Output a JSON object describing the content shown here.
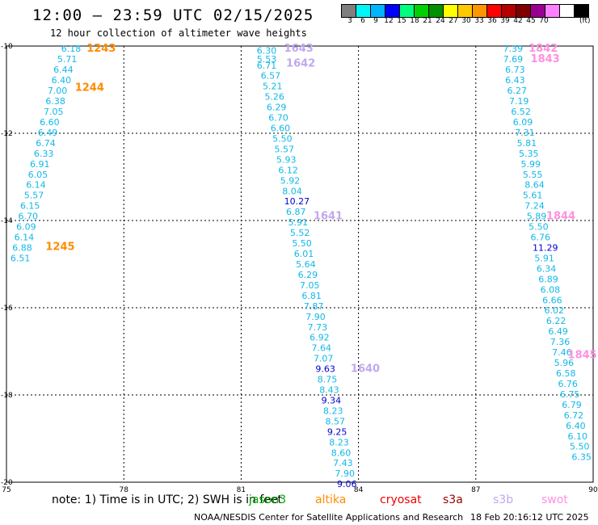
{
  "header": {
    "title": "12:00 — 23:59 UTC 02/15/2025",
    "subtitle": "12 hour collection of altimeter wave heights"
  },
  "legend": {
    "colors": [
      "#7f7f7f",
      "#00f5f5",
      "#00b4ff",
      "#0000ff",
      "#00ff7f",
      "#00d000",
      "#009000",
      "#ffff00",
      "#ffc800",
      "#ff9600",
      "#ff0000",
      "#b40000",
      "#800000",
      "#9a0090",
      "#ff80ff",
      "#ffffff",
      "#000000"
    ],
    "labels": [
      "3",
      "6",
      "9",
      "12",
      "15",
      "18",
      "21",
      "24",
      "27",
      "30",
      "33",
      "36",
      "39",
      "42",
      "45",
      "70"
    ],
    "unit": "(ft)"
  },
  "footer": {
    "note": "note: 1) Time is in UTC; 2) SWH is in feet",
    "satellites": [
      {
        "name": "jason3",
        "color": "#00aa00"
      },
      {
        "name": "altika",
        "color": "#ff8c00"
      },
      {
        "name": "cryosat",
        "color": "#ee0000"
      },
      {
        "name": "s3a",
        "color": "#990000"
      },
      {
        "name": "s3b",
        "color": "#c0a8f0"
      },
      {
        "name": "swot",
        "color": "#ff90e0"
      }
    ],
    "source": "NOAA/NESDIS Center for Satellite Applications and Research",
    "timestamp": "18 Feb 20:16:12 UTC 2025"
  },
  "chart_data": {
    "type": "scatter",
    "map": {
      "xlim": [
        75,
        90
      ],
      "ylim": [
        -20,
        -10
      ],
      "xticks": [
        75,
        78,
        81,
        84,
        87,
        90
      ],
      "yticks": [
        -10,
        -12,
        -14,
        -16,
        -18,
        -20
      ],
      "grid": true
    },
    "tracks": [
      {
        "pass": "1243",
        "sat": "altika",
        "color": "#ff8c00",
        "pos": [
          77.05,
          -10.06
        ]
      },
      {
        "pass": "1244",
        "sat": "altika",
        "color": "#ff8c00",
        "pos": [
          76.75,
          -10.95
        ]
      },
      {
        "pass": "1245",
        "sat": "altika",
        "color": "#ff8c00",
        "pos": [
          76.0,
          -14.6
        ]
      },
      {
        "pass": "1643",
        "sat": "s3b",
        "color": "#c0a8f0",
        "pos": [
          82.1,
          -10.06
        ]
      },
      {
        "pass": "1642",
        "sat": "s3b",
        "color": "#c0a8f0",
        "pos": [
          82.15,
          -10.4
        ]
      },
      {
        "pass": "1641",
        "sat": "s3b",
        "color": "#c0a8f0",
        "pos": [
          82.85,
          -13.9
        ]
      },
      {
        "pass": "1640",
        "sat": "s3b",
        "color": "#c0a8f0",
        "pos": [
          83.8,
          -17.4
        ]
      },
      {
        "pass": "1842",
        "sat": "swot",
        "color": "#ff90e0",
        "pos": [
          88.35,
          -10.06
        ]
      },
      {
        "pass": "1843",
        "sat": "swot",
        "color": "#ff90e0",
        "pos": [
          88.4,
          -10.3
        ]
      },
      {
        "pass": "1844",
        "sat": "swot",
        "color": "#ff90e0",
        "pos": [
          88.8,
          -13.9
        ]
      },
      {
        "pass": "1845",
        "sat": "swot",
        "color": "#ff90e0",
        "pos": [
          89.35,
          -17.08
        ]
      }
    ],
    "points": [
      {
        "x": 76.4,
        "y": -10.06,
        "v": "6.18"
      },
      {
        "x": 76.3,
        "y": -10.3,
        "v": "5.71"
      },
      {
        "x": 76.2,
        "y": -10.54,
        "v": "6.44"
      },
      {
        "x": 76.15,
        "y": -10.78,
        "v": "6.40"
      },
      {
        "x": 76.05,
        "y": -11.02,
        "v": "7.00"
      },
      {
        "x": 76.0,
        "y": -11.26,
        "v": "6.38"
      },
      {
        "x": 75.95,
        "y": -11.5,
        "v": "7.05"
      },
      {
        "x": 75.85,
        "y": -11.74,
        "v": "6.60"
      },
      {
        "x": 75.8,
        "y": -11.98,
        "v": "6.49"
      },
      {
        "x": 75.75,
        "y": -12.22,
        "v": "6.74"
      },
      {
        "x": 75.7,
        "y": -12.46,
        "v": "6.33"
      },
      {
        "x": 75.6,
        "y": -12.7,
        "v": "6.91"
      },
      {
        "x": 75.55,
        "y": -12.94,
        "v": "6.05"
      },
      {
        "x": 75.5,
        "y": -13.18,
        "v": "6.14"
      },
      {
        "x": 75.45,
        "y": -13.42,
        "v": "5.57"
      },
      {
        "x": 75.35,
        "y": -13.66,
        "v": "6.15"
      },
      {
        "x": 75.3,
        "y": -13.9,
        "v": "6.70"
      },
      {
        "x": 75.25,
        "y": -14.14,
        "v": "6.09"
      },
      {
        "x": 75.2,
        "y": -14.38,
        "v": "6.14"
      },
      {
        "x": 75.15,
        "y": -14.62,
        "v": "6.88"
      },
      {
        "x": 75.1,
        "y": -14.86,
        "v": "6.51"
      },
      {
        "x": 81.4,
        "y": -10.1,
        "v": "6.30"
      },
      {
        "x": 81.4,
        "y": -10.3,
        "v": "5.53"
      },
      {
        "x": 81.4,
        "y": -10.44,
        "v": "6.71"
      },
      {
        "x": 81.5,
        "y": -10.68,
        "v": "6.57"
      },
      {
        "x": 81.55,
        "y": -10.92,
        "v": "5.21"
      },
      {
        "x": 81.6,
        "y": -11.16,
        "v": "5.26"
      },
      {
        "x": 81.65,
        "y": -11.4,
        "v": "6.29"
      },
      {
        "x": 81.7,
        "y": -11.64,
        "v": "6.70"
      },
      {
        "x": 81.75,
        "y": -11.88,
        "v": "6.60"
      },
      {
        "x": 81.8,
        "y": -12.12,
        "v": "5.50"
      },
      {
        "x": 81.85,
        "y": -12.36,
        "v": "5.57"
      },
      {
        "x": 81.9,
        "y": -12.6,
        "v": "5.93"
      },
      {
        "x": 81.95,
        "y": -12.84,
        "v": "6.12"
      },
      {
        "x": 82.0,
        "y": -13.08,
        "v": "5.92"
      },
      {
        "x": 82.05,
        "y": -13.32,
        "v": "8.04"
      },
      {
        "x": 82.1,
        "y": -13.56,
        "v": "10.27"
      },
      {
        "x": 82.15,
        "y": -13.8,
        "v": "6.87"
      },
      {
        "x": 82.2,
        "y": -14.04,
        "v": "5.91"
      },
      {
        "x": 82.25,
        "y": -14.28,
        "v": "5.52"
      },
      {
        "x": 82.3,
        "y": -14.52,
        "v": "5.50"
      },
      {
        "x": 82.35,
        "y": -14.76,
        "v": "6.01"
      },
      {
        "x": 82.4,
        "y": -15.0,
        "v": "5.64"
      },
      {
        "x": 82.45,
        "y": -15.24,
        "v": "6.29"
      },
      {
        "x": 82.5,
        "y": -15.48,
        "v": "7.05"
      },
      {
        "x": 82.55,
        "y": -15.72,
        "v": "6.81"
      },
      {
        "x": 82.6,
        "y": -15.96,
        "v": "7.87"
      },
      {
        "x": 82.65,
        "y": -16.2,
        "v": "7.90"
      },
      {
        "x": 82.7,
        "y": -16.44,
        "v": "7.73"
      },
      {
        "x": 82.75,
        "y": -16.68,
        "v": "6.92"
      },
      {
        "x": 82.8,
        "y": -16.92,
        "v": "7.64"
      },
      {
        "x": 82.85,
        "y": -17.16,
        "v": "7.07"
      },
      {
        "x": 82.9,
        "y": -17.4,
        "v": "9.63"
      },
      {
        "x": 82.95,
        "y": -17.64,
        "v": "8.75"
      },
      {
        "x": 83.0,
        "y": -17.88,
        "v": "8.43"
      },
      {
        "x": 83.05,
        "y": -18.12,
        "v": "9.34"
      },
      {
        "x": 83.1,
        "y": -18.36,
        "v": "8.23"
      },
      {
        "x": 83.15,
        "y": -18.6,
        "v": "8.57"
      },
      {
        "x": 83.2,
        "y": -18.84,
        "v": "9.25"
      },
      {
        "x": 83.25,
        "y": -19.08,
        "v": "8.23"
      },
      {
        "x": 83.3,
        "y": -19.32,
        "v": "8.60"
      },
      {
        "x": 83.35,
        "y": -19.56,
        "v": "7.43"
      },
      {
        "x": 83.4,
        "y": -19.8,
        "v": "7.90"
      },
      {
        "x": 83.45,
        "y": -20.04,
        "v": "9.06"
      },
      {
        "x": 87.7,
        "y": -10.06,
        "v": "7.39"
      },
      {
        "x": 87.7,
        "y": -10.3,
        "v": "7.69"
      },
      {
        "x": 87.75,
        "y": -10.54,
        "v": "6.73"
      },
      {
        "x": 87.75,
        "y": -10.78,
        "v": "6.43"
      },
      {
        "x": 87.8,
        "y": -11.02,
        "v": "6.27"
      },
      {
        "x": 87.85,
        "y": -11.26,
        "v": "7.19"
      },
      {
        "x": 87.9,
        "y": -11.5,
        "v": "6.52"
      },
      {
        "x": 87.95,
        "y": -11.74,
        "v": "6.09"
      },
      {
        "x": 88.0,
        "y": -11.98,
        "v": "7.31"
      },
      {
        "x": 88.05,
        "y": -12.22,
        "v": "5.81"
      },
      {
        "x": 88.1,
        "y": -12.46,
        "v": "5.35"
      },
      {
        "x": 88.15,
        "y": -12.7,
        "v": "5.99"
      },
      {
        "x": 88.2,
        "y": -12.94,
        "v": "5.55"
      },
      {
        "x": 88.25,
        "y": -13.18,
        "v": "8.64"
      },
      {
        "x": 88.2,
        "y": -13.42,
        "v": "5.61"
      },
      {
        "x": 88.25,
        "y": -13.66,
        "v": "7.24"
      },
      {
        "x": 88.3,
        "y": -13.9,
        "v": "5.89"
      },
      {
        "x": 88.35,
        "y": -14.14,
        "v": "5.50"
      },
      {
        "x": 88.4,
        "y": -14.38,
        "v": "6.76"
      },
      {
        "x": 88.45,
        "y": -14.62,
        "v": "11.29"
      },
      {
        "x": 88.5,
        "y": -14.86,
        "v": "5.91"
      },
      {
        "x": 88.55,
        "y": -15.1,
        "v": "6.34"
      },
      {
        "x": 88.6,
        "y": -15.34,
        "v": "6.89"
      },
      {
        "x": 88.65,
        "y": -15.58,
        "v": "6.08"
      },
      {
        "x": 88.7,
        "y": -15.82,
        "v": "6.66"
      },
      {
        "x": 88.75,
        "y": -16.06,
        "v": "6.02"
      },
      {
        "x": 88.8,
        "y": -16.3,
        "v": "6.22"
      },
      {
        "x": 88.85,
        "y": -16.54,
        "v": "6.49"
      },
      {
        "x": 88.9,
        "y": -16.78,
        "v": "7.36"
      },
      {
        "x": 88.95,
        "y": -17.02,
        "v": "7.46"
      },
      {
        "x": 89.0,
        "y": -17.26,
        "v": "5.96"
      },
      {
        "x": 89.05,
        "y": -17.5,
        "v": "6.58"
      },
      {
        "x": 89.1,
        "y": -17.74,
        "v": "6.76"
      },
      {
        "x": 89.15,
        "y": -17.98,
        "v": "6.75"
      },
      {
        "x": 89.2,
        "y": -18.22,
        "v": "6.79"
      },
      {
        "x": 89.25,
        "y": -18.46,
        "v": "6.72"
      },
      {
        "x": 89.3,
        "y": -18.7,
        "v": "6.40"
      },
      {
        "x": 89.35,
        "y": -18.94,
        "v": "6.10"
      },
      {
        "x": 89.4,
        "y": -19.18,
        "v": "5.50"
      },
      {
        "x": 89.45,
        "y": -19.42,
        "v": "6.35"
      }
    ]
  }
}
